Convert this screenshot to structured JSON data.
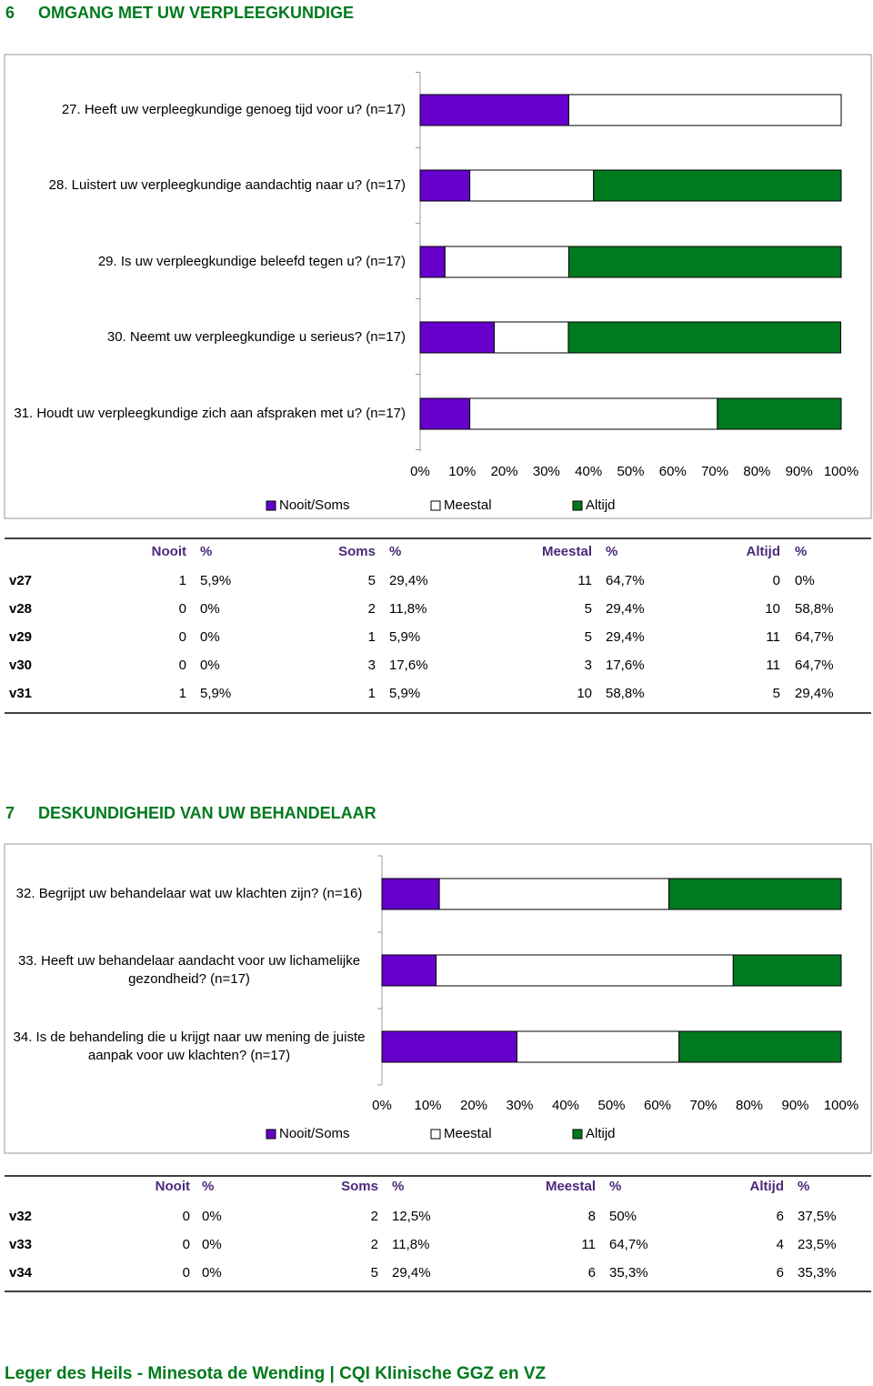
{
  "sections": [
    {
      "number": "6",
      "title": "OMGANG MET UW VERPLEEGKUNDIGE",
      "table": {
        "header": [
          "Nooit",
          "%",
          "Soms",
          "%",
          "Meestal",
          "%",
          "Altijd",
          "%"
        ],
        "rows": [
          [
            "v27",
            "1",
            "5,9%",
            "5",
            "29,4%",
            "11",
            "64,7%",
            "0",
            "0%"
          ],
          [
            "v28",
            "0",
            "0%",
            "2",
            "11,8%",
            "5",
            "29,4%",
            "10",
            "58,8%"
          ],
          [
            "v29",
            "0",
            "0%",
            "1",
            "5,9%",
            "5",
            "29,4%",
            "11",
            "64,7%"
          ],
          [
            "v30",
            "0",
            "0%",
            "3",
            "17,6%",
            "3",
            "17,6%",
            "11",
            "64,7%"
          ],
          [
            "v31",
            "1",
            "5,9%",
            "1",
            "5,9%",
            "10",
            "58,8%",
            "5",
            "29,4%"
          ]
        ]
      }
    },
    {
      "number": "7",
      "title": "DESKUNDIGHEID VAN UW BEHANDELAAR",
      "table": {
        "header": [
          "Nooit",
          "%",
          "Soms",
          "%",
          "Meestal",
          "%",
          "Altijd",
          "%"
        ],
        "rows": [
          [
            "v32",
            "0",
            "0%",
            "2",
            "12,5%",
            "8",
            "50%",
            "6",
            "37,5%"
          ],
          [
            "v33",
            "0",
            "0%",
            "2",
            "11,8%",
            "11",
            "64,7%",
            "4",
            "23,5%"
          ],
          [
            "v34",
            "0",
            "0%",
            "5",
            "29,4%",
            "6",
            "35,3%",
            "6",
            "35,3%"
          ]
        ]
      }
    }
  ],
  "chart_data": [
    {
      "type": "stacked-bar-horizontal",
      "categories": [
        "27. Heeft uw verpleegkundige genoeg tijd voor u? (n=17)",
        "28. Luistert uw verpleegkundige aandachtig naar u? (n=17)",
        "29. Is uw verpleegkundige beleefd tegen u? (n=17)",
        "30. Neemt uw verpleegkundige u serieus? (n=17)",
        "31. Houdt uw verpleegkundige zich aan afspraken met u? (n=17)"
      ],
      "series": [
        {
          "name": "Nooit/Soms",
          "color": "#6600cc",
          "values": [
            35.3,
            11.8,
            5.9,
            17.6,
            11.8
          ]
        },
        {
          "name": "Meestal",
          "color": "#ffffff",
          "values": [
            64.7,
            29.4,
            29.4,
            17.6,
            58.8
          ]
        },
        {
          "name": "Altijd",
          "color": "#007a1e",
          "values": [
            0,
            58.8,
            64.7,
            64.7,
            29.4
          ]
        }
      ],
      "xlim": [
        0,
        100
      ],
      "xticks": [
        {
          "value": 0,
          "label": "0%"
        },
        {
          "value": 10,
          "label": "10%"
        },
        {
          "value": 20,
          "label": "20%"
        },
        {
          "value": 30,
          "label": "30%"
        },
        {
          "value": 40,
          "label": "40%"
        },
        {
          "value": 50,
          "label": "50%"
        },
        {
          "value": 60,
          "label": "60%"
        },
        {
          "value": 70,
          "label": "70%"
        },
        {
          "value": 80,
          "label": "80%"
        },
        {
          "value": 90,
          "label": "90%"
        },
        {
          "value": 100,
          "label": "100%"
        }
      ]
    },
    {
      "type": "stacked-bar-horizontal",
      "categories": [
        "32. Begrijpt uw behandelaar wat uw klachten zijn? (n=16)",
        "33. Heeft uw behandelaar aandacht voor uw lichamelijke gezondheid? (n=17)",
        "34. Is de behandeling die u krijgt naar uw mening de juiste aanpak voor uw klachten? (n=17)"
      ],
      "series": [
        {
          "name": "Nooit/Soms",
          "color": "#6600cc",
          "values": [
            12.5,
            11.8,
            29.4
          ]
        },
        {
          "name": "Meestal",
          "color": "#ffffff",
          "values": [
            50,
            64.7,
            35.3
          ]
        },
        {
          "name": "Altijd",
          "color": "#007a1e",
          "values": [
            37.5,
            23.5,
            35.3
          ]
        }
      ],
      "xlim": [
        0,
        100
      ],
      "xticks": [
        {
          "value": 0,
          "label": "0%"
        },
        {
          "value": 10,
          "label": "10%"
        },
        {
          "value": 20,
          "label": "20%"
        },
        {
          "value": 30,
          "label": "30%"
        },
        {
          "value": 40,
          "label": "40%"
        },
        {
          "value": 50,
          "label": "50%"
        },
        {
          "value": 60,
          "label": "60%"
        },
        {
          "value": 70,
          "label": "70%"
        },
        {
          "value": 80,
          "label": "80%"
        },
        {
          "value": 90,
          "label": "90%"
        },
        {
          "value": 100,
          "label": "100%"
        }
      ]
    }
  ],
  "footer": "Leger des Heils - Minesota de Wending | CQI Klinische GGZ en VZ"
}
